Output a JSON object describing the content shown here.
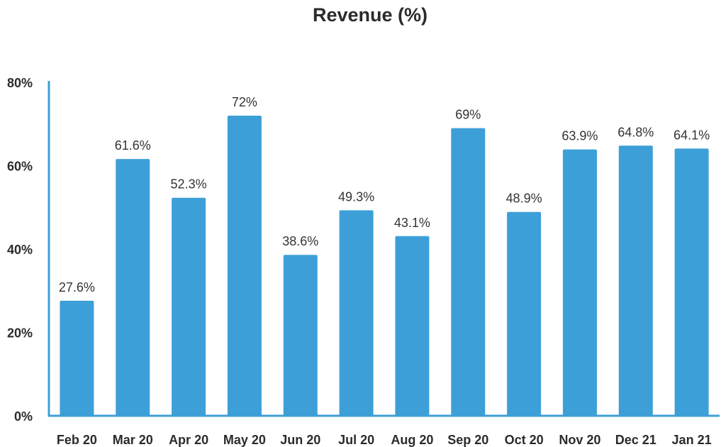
{
  "chart_data": {
    "type": "bar",
    "title": "Revenue (%)",
    "xlabel": "",
    "ylabel": "",
    "ylim": [
      0,
      80
    ],
    "yticks": [
      0,
      20,
      40,
      60,
      80
    ],
    "ytick_labels": [
      "0%",
      "20%",
      "40%",
      "60%",
      "80%"
    ],
    "grid": false,
    "legend": "none",
    "categories": [
      "Feb 20",
      "Mar 20",
      "Apr 20",
      "May 20",
      "Jun 20",
      "Jul 20",
      "Aug 20",
      "Sep 20",
      "Oct 20",
      "Nov 20",
      "Dec 21",
      "Jan 21"
    ],
    "values": [
      27.6,
      61.6,
      52.3,
      72,
      38.6,
      49.3,
      43.1,
      69,
      48.9,
      63.9,
      64.8,
      64.1
    ],
    "data_labels": [
      "27.6%",
      "61.6%",
      "52.3%",
      "72%",
      "38.6%",
      "49.3%",
      "43.1%",
      "69%",
      "48.9%",
      "63.9%",
      "64.8%",
      "64.1%"
    ],
    "colors": {
      "bar": "#3d9fd8",
      "axis": "#3d9fd8",
      "text": "#2b2b2b"
    }
  }
}
